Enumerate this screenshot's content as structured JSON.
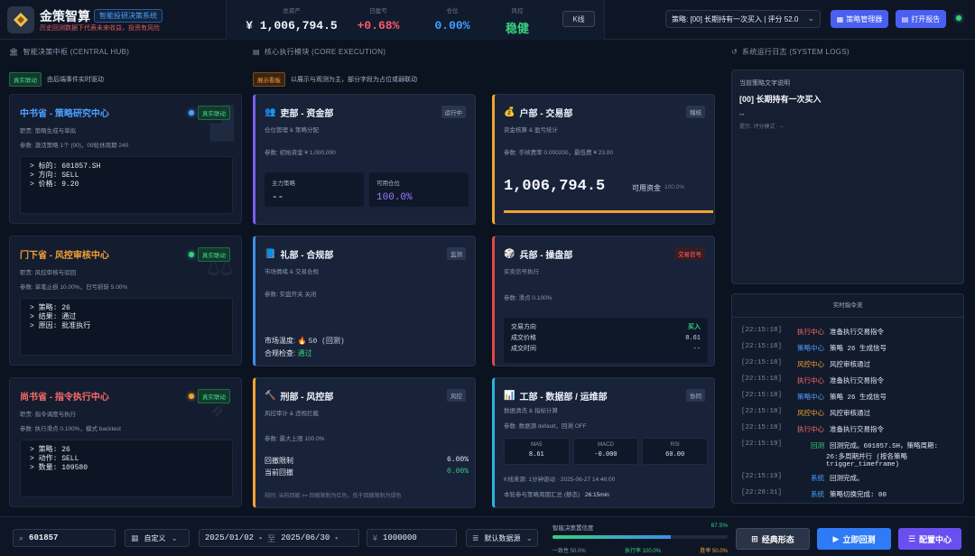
{
  "header": {
    "brand_title": "金策智算",
    "brand_tag": "智能投研决策系统",
    "brand_sub": "历史回测数据下代表未来收益，投资有风险",
    "metrics": [
      {
        "label": "总资产",
        "value": "¥ 1,006,794.5"
      },
      {
        "label": "日盈亏",
        "value": "+0.68%"
      },
      {
        "label": "仓位",
        "value": "0.00%"
      },
      {
        "label": "风控",
        "value": "稳健"
      }
    ],
    "kline_label": "K线",
    "strategy_select": "策略: [00] 长期持有一次买入 | 评分 52.0",
    "strategy_manager": "策略管理器",
    "open_report": "打开报告"
  },
  "sections": {
    "hub_title": "智能决策中枢 (CENTRAL HUB)",
    "hub_tag": "真实联动",
    "hub_desc": "由后端事件实时驱动",
    "core_title": "核心执行模块 (CORE EXECUTION)",
    "core_tag": "展示看板",
    "core_desc": "以展示与观测为主，部分字段为占位或弱联动",
    "log_title": "系统运行日志 (SYSTEM LOGS)"
  },
  "hub_cards": [
    {
      "title": "中书省 - 策略研究中心",
      "badge": "真实联动",
      "role": "职责: 策略生成与草拟",
      "param": "参数: 激活策略 1个 (00)，09轮休周期 240",
      "lines": [
        "> 标的: 601857.SH",
        "> 方向: SELL",
        "> 价格: 9.20"
      ]
    },
    {
      "title": "门下省 - 风控审核中心",
      "badge": "真实联动",
      "role": "职责: 风控审核与驳回",
      "param": "参数: 单笔止损 10.00%，日亏损斩 5.00%",
      "lines": [
        "> 策略: 26",
        "> 结果: 通过",
        "> 原因: 批准执行"
      ]
    },
    {
      "title": "尚书省 - 指令执行中心",
      "badge": "真实联动",
      "role": "职责: 指令调度与执行",
      "param": "参数: 执行滑点 0.100%，模式 backtest",
      "lines": [
        "> 策略: 26",
        "> 动作: SELL",
        "> 数量: 109580"
      ]
    }
  ],
  "depts": {
    "li": {
      "title": "吏部 - 资金部",
      "tag": "运行中",
      "sub": "仓位管理 & 策略分配",
      "param": "参数: 初始资金 ¥ 1,000,000",
      "k1": "主力策略",
      "v1": "--",
      "k2": "可用仓位",
      "v2": "100.0%"
    },
    "hu": {
      "title": "户部 - 交易部",
      "tag": "稽核",
      "sub": "资金核算 & 盈亏统计",
      "param": "参数: 手续费率 0.000200，最低费 ¥ 23.00",
      "big": "1,006,794.5",
      "cap": "可用资金",
      "pct": "100.0%"
    },
    "lib": {
      "title": "礼部 - 合规部",
      "tag": "监测",
      "sub": "市场情绪 & 交易合规",
      "param": "参数: 实盘开关 关闭",
      "temp_label": "市场温度:",
      "temp_val": "50 (回测)",
      "check_label": "合规检查:",
      "check_val": "通过"
    },
    "bing": {
      "title": "兵部 - 操盘部",
      "tag": "交易信号",
      "sub": "买卖信号执行",
      "param": "参数: 滑点 0.100%",
      "rows": [
        [
          "交易方向",
          "买入"
        ],
        [
          "成交价格",
          "8.61"
        ],
        [
          "成交时间",
          "--"
        ]
      ]
    },
    "xing": {
      "title": "刑部 - 风控部",
      "tag": "风控",
      "sub": "风控审计 & 违规拦截",
      "param": "参数: 最大上限 100.0%",
      "r1k": "回撤限制",
      "r1v": "6.00%",
      "r2k": "当前回撤",
      "r2v": "0.00%",
      "note": "规则: 当前回撤 >= 回撤限制为红色，低于回撤限制为绿色"
    },
    "gong": {
      "title": "工部 - 数据部 / 运维部",
      "tag": "协同",
      "sub": "数据清洗 & 指标计算",
      "param": "参数: 数据源 default，回溯 OFF",
      "inds": [
        [
          "MA5",
          "8.61"
        ],
        [
          "MACD",
          "-0.000"
        ],
        [
          "RSI",
          "60.00"
        ]
      ],
      "kline": "K线来源: 1分钟驱动 · 2025-06-27 14:46:00",
      "perf_label": "本轮参与策略周期汇总 (静态)",
      "perf_val": "26:15min"
    }
  },
  "log_desc": {
    "label": "当前策略文字说明",
    "title": "[00] 长期持有一次买入",
    "dash": "--",
    "hint": "提示: 评分模式 · --"
  },
  "logs": {
    "head": "实时指令流",
    "items": [
      {
        "ts": "[22:15:18]",
        "src": "执行中心",
        "color": "#ff6a6a",
        "msg": "准备执行交易指令"
      },
      {
        "ts": "[22:15:18]",
        "src": "策略中心",
        "color": "#4ea1ff",
        "msg": "策略 26 生成信号"
      },
      {
        "ts": "[22:15:18]",
        "src": "风控中心",
        "color": "#f2a233",
        "msg": "风控审核通过"
      },
      {
        "ts": "[22:15:18]",
        "src": "执行中心",
        "color": "#ff6a6a",
        "msg": "准备执行交易指令"
      },
      {
        "ts": "[22:15:18]",
        "src": "策略中心",
        "color": "#4ea1ff",
        "msg": "策略 26 生成信号"
      },
      {
        "ts": "[22:15:18]",
        "src": "风控中心",
        "color": "#f2a233",
        "msg": "风控审核通过"
      },
      {
        "ts": "[22:15:18]",
        "src": "执行中心",
        "color": "#ff6a6a",
        "msg": "准备执行交易指令"
      },
      {
        "ts": "[22:15:19]",
        "src": "回测",
        "color": "#35d07f",
        "msg": "回测完成。601857.SH，策略周期:"
      },
      {
        "ts": "[22:15:19]",
        "src": "系统",
        "color": "#3fa2ff",
        "msg": "回测完成。"
      },
      {
        "ts": "[22:28:31]",
        "src": "系统",
        "color": "#3fa2ff",
        "msg": "策略切换完成: 00"
      }
    ],
    "cont1": "26:多周期并行 (按各策略",
    "cont2": "trigger_timeframe)"
  },
  "bottom": {
    "symbol": "601857",
    "range_type": "自定义",
    "date_from": "2025/01/02",
    "date_sep": "至",
    "date_to": "2025/06/30",
    "capital": "1000000",
    "datasource": "默认数据源",
    "prog_label": "智能决策置信度",
    "prog_pct": "67.5%",
    "prog_value": 0.675,
    "prog_a": "一致性 50.0%",
    "prog_b": "执行率 100.0%",
    "prog_c": "胜率 50.0%",
    "btn_classic": "经典形态",
    "btn_backtest": "立即回测",
    "btn_config": "配置中心"
  }
}
